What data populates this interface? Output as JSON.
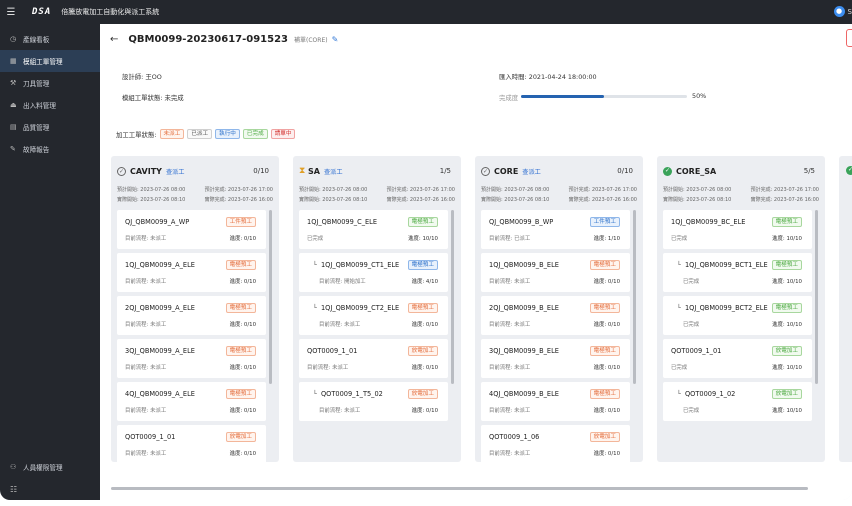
{
  "topbar": {
    "logo": "DSA",
    "system_title": "倍騰放電加工自動化與派工系統",
    "user_initial": "S"
  },
  "sidebar": {
    "items": [
      {
        "label": "產線看板",
        "icon": "clock-icon"
      },
      {
        "label": "模組工單管理",
        "icon": "grid-icon",
        "active": true
      },
      {
        "label": "刀具管理",
        "icon": "wrench-icon"
      },
      {
        "label": "出入料管理",
        "icon": "tray-icon"
      },
      {
        "label": "品質管理",
        "icon": "calendar-icon"
      },
      {
        "label": "故障報告",
        "icon": "edit-icon"
      }
    ],
    "bottom_item": {
      "label": "人員權限管理",
      "icon": "person-icon"
    }
  },
  "header": {
    "title": "QBM0099-20230617-091523",
    "sub": "補單(CORE)"
  },
  "info": {
    "designer": "設計師: 王OO",
    "import_time": "匯入時間: 2021-04-24 18:00:00",
    "order_status": "模組工單狀態: 未完成",
    "completion_label": "完成度",
    "completion_pct": 50,
    "completion_text": "50%"
  },
  "legend": {
    "label": "加工工單狀態:",
    "items": [
      {
        "text": "未派工",
        "kind": "wait"
      },
      {
        "text": "已派工",
        "kind": "done"
      },
      {
        "text": "執行中",
        "kind": "run"
      },
      {
        "text": "已完成",
        "kind": "ok"
      },
      {
        "text": "請單中",
        "kind": "fail"
      }
    ]
  },
  "columns": [
    {
      "name": "CAVITY",
      "link": "查派工",
      "count": "0/10",
      "status": "pending",
      "plan_start": "預計開始: 2023-07-26 08:00",
      "plan_end": "預計完成: 2023-07-26 17:00",
      "real_start": "實際開始: 2023-07-26 08:10",
      "real_end": "實際完成: 2023-07-26 16:00",
      "cards": [
        {
          "name": "QJ_QBM0099_A_WP",
          "badge": "工件預工",
          "kind": "wait",
          "status": "目前流程: 未派工",
          "progress": "進度: 0/10"
        },
        {
          "name": "1QJ_QBM0099_A_ELE",
          "badge": "電極預工",
          "kind": "wait",
          "status": "目前流程: 未派工",
          "progress": "進度: 0/10"
        },
        {
          "name": "2QJ_QBM0099_A_ELE",
          "badge": "電極預工",
          "kind": "wait",
          "status": "目前流程: 未派工",
          "progress": "進度: 0/10"
        },
        {
          "name": "3QJ_QBM0099_A_ELE",
          "badge": "電極預工",
          "kind": "wait",
          "status": "目前流程: 未派工",
          "progress": "進度: 0/10"
        },
        {
          "name": "4QJ_QBM0099_A_ELE",
          "badge": "電極預工",
          "kind": "wait",
          "status": "目前流程: 未派工",
          "progress": "進度: 0/10"
        },
        {
          "name": "QOT0009_1_01",
          "badge": "放電加工",
          "kind": "wait",
          "status": "目前流程: 未派工",
          "progress": "進度: 0/10"
        }
      ]
    },
    {
      "name": "SA",
      "link": "查派工",
      "count": "1/5",
      "status": "hourglass",
      "plan_start": "預計開始: 2023-07-26 08:00",
      "plan_end": "預計完成: 2023-07-26 17:00",
      "real_start": "實際開始: 2023-07-26 08:10",
      "real_end": "實際完成: 2023-07-26 16:00",
      "cards": [
        {
          "name": "1QJ_QBM0099_C_ELE",
          "badge": "電極預工",
          "kind": "ok",
          "status": "已完成",
          "progress": "進度: 10/10"
        },
        {
          "name": "1QJ_QBM0099_CT1_ELE",
          "badge": "電極預工",
          "kind": "run",
          "status": "目前流程: 開始加工",
          "progress": "進度: 4/10",
          "child": true
        },
        {
          "name": "1QJ_QBM0099_CT2_ELE",
          "badge": "電極預工",
          "kind": "wait",
          "status": "目前流程: 未派工",
          "progress": "進度: 0/10",
          "child": true
        },
        {
          "name": "QOT0009_1_01",
          "badge": "放電加工",
          "kind": "wait",
          "status": "目前流程: 未派工",
          "progress": "進度: 0/10"
        },
        {
          "name": "QOT0009_1_T5_02",
          "badge": "放電加工",
          "kind": "wait",
          "status": "目前流程: 未派工",
          "progress": "進度: 0/10",
          "child": true
        }
      ]
    },
    {
      "name": "CORE",
      "link": "查派工",
      "count": "0/10",
      "status": "pending",
      "plan_start": "預計開始: 2023-07-26 08:00",
      "plan_end": "預計完成: 2023-07-26 17:00",
      "real_start": "實際開始: 2023-07-26 08:10",
      "real_end": "實際完成: 2023-07-26 16:00",
      "cards": [
        {
          "name": "QJ_QBM0099_B_WP",
          "badge": "工件預工",
          "kind": "run",
          "status": "目前流程: 已派工",
          "progress": "進度: 1/10"
        },
        {
          "name": "1QJ_QBM0099_B_ELE",
          "badge": "電極預工",
          "kind": "wait",
          "status": "目前流程: 未派工",
          "progress": "進度: 0/10"
        },
        {
          "name": "2QJ_QBM0099_B_ELE",
          "badge": "電極預工",
          "kind": "wait",
          "status": "目前流程: 未派工",
          "progress": "進度: 0/10"
        },
        {
          "name": "3QJ_QBM0099_B_ELE",
          "badge": "電極預工",
          "kind": "wait",
          "status": "目前流程: 未派工",
          "progress": "進度: 0/10"
        },
        {
          "name": "4QJ_QBM0099_B_ELE",
          "badge": "電極預工",
          "kind": "wait",
          "status": "目前流程: 未派工",
          "progress": "進度: 0/10"
        },
        {
          "name": "QOT0009_1_06",
          "badge": "放電加工",
          "kind": "wait",
          "status": "目前流程: 未派工",
          "progress": "進度: 0/10"
        }
      ]
    },
    {
      "name": "CORE_SA",
      "link": "",
      "count": "5/5",
      "status": "done",
      "plan_start": "預計開始: 2023-07-26 08:00",
      "plan_end": "預計完成: 2023-07-26 17:00",
      "real_start": "實際開始: 2023-07-26 08:10",
      "real_end": "實際完成: 2023-07-26 16:00",
      "cards": [
        {
          "name": "1QJ_QBM0099_BC_ELE",
          "badge": "電極預工",
          "kind": "ok",
          "status": "已完成",
          "progress": "進度: 10/10"
        },
        {
          "name": "1QJ_QBM0099_BCT1_ELE",
          "badge": "電極預工",
          "kind": "ok",
          "status": "已完成",
          "progress": "進度: 10/10",
          "child": true
        },
        {
          "name": "1QJ_QBM0099_BCT2_ELE",
          "badge": "電極預工",
          "kind": "ok",
          "status": "已完成",
          "progress": "進度: 10/10",
          "child": true
        },
        {
          "name": "QOT0009_1_01",
          "badge": "放電加工",
          "kind": "ok",
          "status": "已完成",
          "progress": "進度: 10/10"
        },
        {
          "name": "QOT0009_1_02",
          "badge": "放電加工",
          "kind": "ok",
          "status": "已完成",
          "progress": "進度: 10/10",
          "child": true
        }
      ]
    }
  ]
}
